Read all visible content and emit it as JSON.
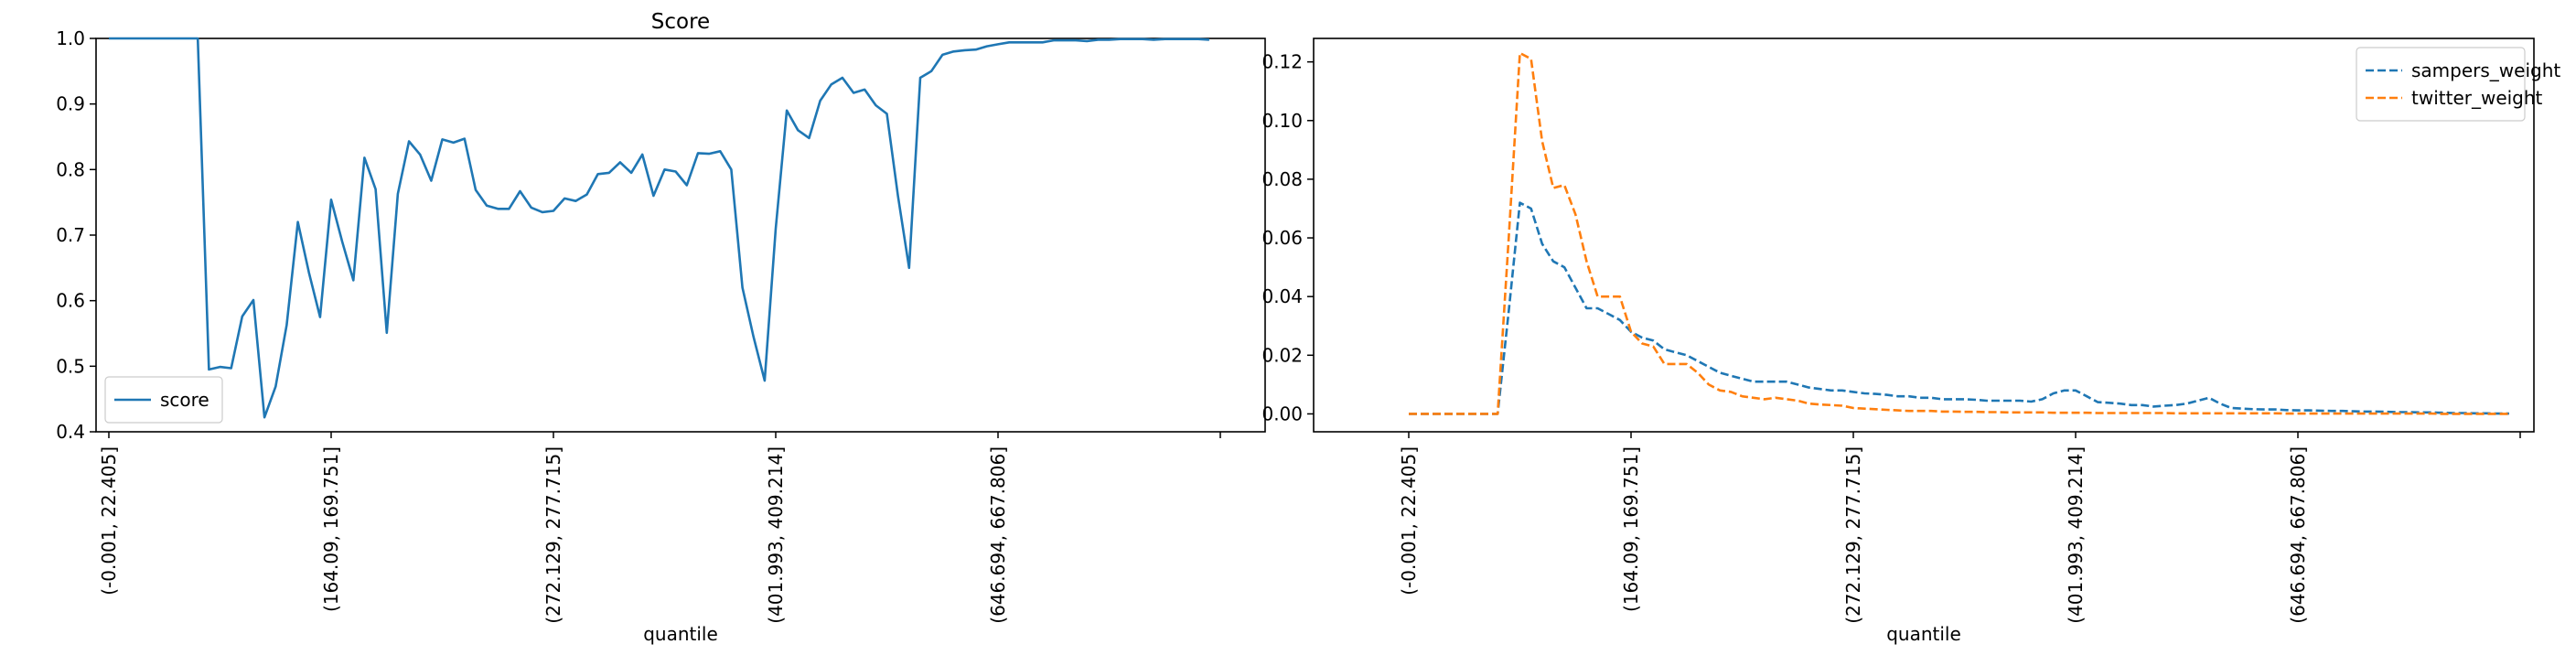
{
  "chart_data": [
    {
      "type": "line",
      "title": "Score",
      "xlabel": "quantile",
      "ylabel": "",
      "ylim": [
        0.4,
        1.0
      ],
      "y_ticks": [
        "0.4",
        "0.5",
        "0.6",
        "0.7",
        "0.8",
        "0.9",
        "1.0"
      ],
      "y_tick_values": [
        0.4,
        0.5,
        0.6,
        0.7,
        0.8,
        0.9,
        1.0
      ],
      "x_tick_labels": [
        "(-0.001, 22.405]",
        "(164.09, 169.751]",
        "(272.129, 277.715]",
        "(401.993, 409.214]",
        "(646.694, 667.806]",
        ""
      ],
      "x_tick_index": [
        0,
        20,
        40,
        60,
        80,
        100
      ],
      "legend_position": "lower-left",
      "series": [
        {
          "name": "score",
          "color": "#1f77b4",
          "style": "solid",
          "values": [
            1.0,
            1.0,
            1.0,
            1.0,
            1.0,
            1.0,
            1.0,
            1.0,
            1.0,
            0.495,
            0.499,
            0.497,
            0.576,
            0.601,
            0.422,
            0.469,
            0.563,
            0.72,
            0.643,
            0.575,
            0.754,
            0.69,
            0.631,
            0.818,
            0.77,
            0.551,
            0.763,
            0.843,
            0.823,
            0.783,
            0.846,
            0.841,
            0.847,
            0.769,
            0.745,
            0.74,
            0.74,
            0.767,
            0.742,
            0.735,
            0.737,
            0.756,
            0.752,
            0.762,
            0.793,
            0.795,
            0.811,
            0.795,
            0.823,
            0.76,
            0.8,
            0.797,
            0.776,
            0.825,
            0.824,
            0.828,
            0.8,
            0.62,
            0.545,
            0.478,
            0.71,
            0.89,
            0.86,
            0.848,
            0.905,
            0.93,
            0.94,
            0.917,
            0.922,
            0.898,
            0.885,
            0.76,
            0.65,
            0.94,
            0.95,
            0.975,
            0.98,
            0.982,
            0.983,
            0.988,
            0.991,
            0.994,
            0.994,
            0.994,
            0.994,
            0.997,
            0.997,
            0.997,
            0.996,
            0.998,
            0.998,
            0.999,
            0.999,
            0.999,
            0.998,
            0.999,
            0.999,
            0.999,
            0.999,
            0.998
          ]
        }
      ]
    },
    {
      "type": "line",
      "title": "",
      "xlabel": "quantile",
      "ylabel": "",
      "ylim": [
        -0.0061,
        0.128
      ],
      "y_ticks": [
        "0.00",
        "0.02",
        "0.04",
        "0.06",
        "0.08",
        "0.10",
        "0.12"
      ],
      "y_tick_values": [
        0.0,
        0.02,
        0.04,
        0.06,
        0.08,
        0.1,
        0.12
      ],
      "x_tick_labels": [
        "(-0.001, 22.405]",
        "(164.09, 169.751]",
        "(272.129, 277.715]",
        "(401.993, 409.214]",
        "(646.694, 667.806]",
        ""
      ],
      "x_tick_index": [
        0,
        20,
        40,
        60,
        80,
        100
      ],
      "legend_position": "upper-right",
      "series": [
        {
          "name": "sampers_weight",
          "color": "#1f77b4",
          "style": "dashed",
          "values": [
            0,
            0,
            0,
            0,
            0,
            0,
            0,
            0,
            0,
            0.035,
            0.072,
            0.07,
            0.058,
            0.052,
            0.05,
            0.043,
            0.036,
            0.036,
            0.034,
            0.032,
            0.028,
            0.026,
            0.025,
            0.022,
            0.021,
            0.02,
            0.018,
            0.016,
            0.014,
            0.013,
            0.012,
            0.011,
            0.011,
            0.011,
            0.011,
            0.01,
            0.009,
            0.0085,
            0.008,
            0.008,
            0.0075,
            0.007,
            0.0068,
            0.0065,
            0.006,
            0.006,
            0.0055,
            0.0055,
            0.005,
            0.005,
            0.005,
            0.0048,
            0.0045,
            0.0045,
            0.0045,
            0.0045,
            0.0042,
            0.005,
            0.007,
            0.008,
            0.008,
            0.006,
            0.004,
            0.0038,
            0.0035,
            0.003,
            0.003,
            0.0025,
            0.0028,
            0.003,
            0.0035,
            0.0045,
            0.0055,
            0.0035,
            0.002,
            0.0018,
            0.0016,
            0.0015,
            0.0015,
            0.0013,
            0.0012,
            0.0012,
            0.0011,
            0.001,
            0.001,
            0.0009,
            0.0008,
            0.0008,
            0.0007,
            0.0006,
            0.0006,
            0.0005,
            0.0005,
            0.0004,
            0.0003,
            0.0003,
            0.0002,
            0.0002,
            0.0001,
            0.0001
          ]
        },
        {
          "name": "twitter_weight",
          "color": "#ff7f0e",
          "style": "dashed",
          "values": [
            0,
            0,
            0,
            0,
            0,
            0,
            0,
            0,
            0,
            0.06,
            0.123,
            0.121,
            0.093,
            0.077,
            0.078,
            0.068,
            0.052,
            0.04,
            0.04,
            0.04,
            0.028,
            0.024,
            0.023,
            0.017,
            0.017,
            0.017,
            0.014,
            0.01,
            0.008,
            0.0075,
            0.006,
            0.0055,
            0.005,
            0.0055,
            0.005,
            0.0045,
            0.0035,
            0.0032,
            0.003,
            0.0028,
            0.002,
            0.0018,
            0.0016,
            0.0014,
            0.0012,
            0.001,
            0.001,
            0.001,
            0.0008,
            0.0008,
            0.0007,
            0.0007,
            0.0006,
            0.0006,
            0.0005,
            0.0005,
            0.0005,
            0.0005,
            0.0004,
            0.0004,
            0.0004,
            0.0004,
            0.0003,
            0.0003,
            0.0003,
            0.0003,
            0.0003,
            0.0003,
            0.0003,
            0.0002,
            0.0002,
            0.0002,
            0.0002,
            0.0002,
            0.0002,
            0.0002,
            0.0002,
            0.0002,
            0.0002,
            0.0001,
            0.0001,
            0.0001,
            0.0001,
            0.0001,
            0.0001,
            0.0001,
            0.0001,
            0.0001,
            0.0001,
            0.0001,
            0.0001,
            0.0001,
            0.0001,
            0,
            0,
            0,
            0,
            0,
            0,
            0
          ]
        }
      ]
    }
  ]
}
